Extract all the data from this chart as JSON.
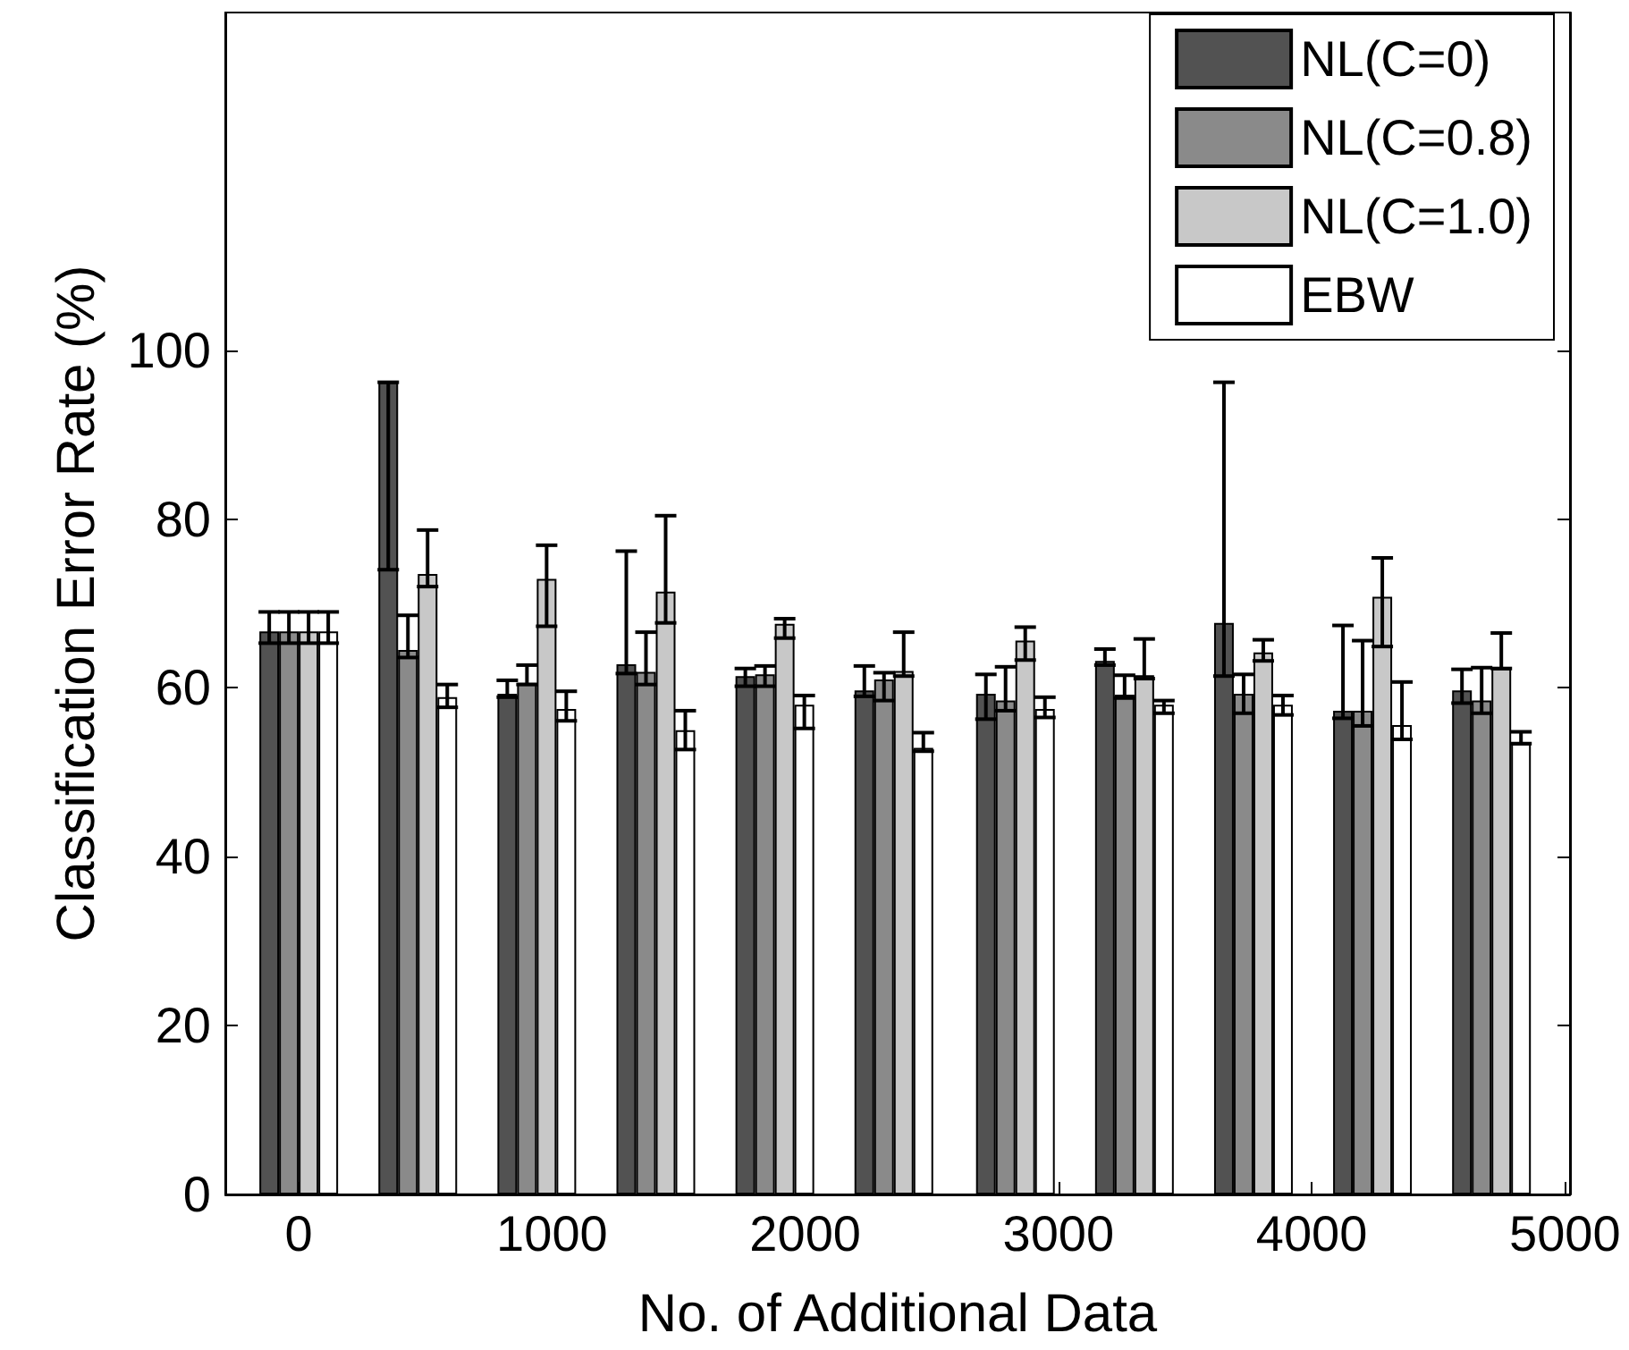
{
  "chart_data": {
    "type": "bar",
    "xlabel": "No. of Additional Data",
    "ylabel": "Classification Error Rate (%)",
    "x": [
      0,
      470,
      940,
      1410,
      1880,
      2350,
      2830,
      3300,
      3770,
      4240,
      4710
    ],
    "series": [
      {
        "name": "NL(C=0)",
        "color": "#525252",
        "values": [
          66.7,
          96.2,
          59.3,
          62.8,
          61.4,
          59.7,
          59.3,
          63.2,
          67.7,
          57.3,
          59.7
        ],
        "errors": [
          [
            65.3,
            69.0
          ],
          [
            74.0,
            96.2
          ],
          [
            58.9,
            60.9
          ],
          [
            61.7,
            76.2
          ],
          [
            60.2,
            62.3
          ],
          [
            59.0,
            62.6
          ],
          [
            56.3,
            61.6
          ],
          [
            62.7,
            64.6
          ],
          [
            61.4,
            96.2
          ],
          [
            56.4,
            67.4
          ],
          [
            58.2,
            62.2
          ]
        ]
      },
      {
        "name": "NL(C=0.8)",
        "color": "#8a8a8a",
        "values": [
          66.7,
          64.5,
          60.6,
          61.9,
          61.6,
          61.0,
          58.5,
          59.2,
          59.3,
          57.3,
          58.5
        ],
        "errors": [
          [
            65.3,
            69.0
          ],
          [
            63.6,
            68.6
          ],
          [
            60.4,
            62.7
          ],
          [
            60.4,
            66.6
          ],
          [
            60.2,
            62.6
          ],
          [
            58.5,
            61.8
          ],
          [
            57.3,
            62.5
          ],
          [
            58.8,
            61.5
          ],
          [
            57.0,
            61.6
          ],
          [
            55.5,
            65.6
          ],
          [
            57.0,
            62.4
          ]
        ]
      },
      {
        "name": "NL(C=1.0)",
        "color": "#c8c8c8",
        "values": [
          66.7,
          73.5,
          72.9,
          71.4,
          67.6,
          62.0,
          65.6,
          61.5,
          64.2,
          70.8,
          62.3
        ],
        "errors": [
          [
            65.3,
            69.0
          ],
          [
            72.0,
            78.7
          ],
          [
            67.3,
            76.9
          ],
          [
            67.7,
            80.4
          ],
          [
            65.9,
            68.2
          ],
          [
            61.4,
            66.6
          ],
          [
            63.3,
            67.2
          ],
          [
            61.1,
            65.8
          ],
          [
            63.2,
            65.7
          ],
          [
            64.9,
            75.4
          ],
          [
            62.3,
            66.5
          ]
        ]
      },
      {
        "name": "EBW",
        "color": "#ffffff",
        "values": [
          66.7,
          58.9,
          57.5,
          55.0,
          58.0,
          52.9,
          57.5,
          58.0,
          58.0,
          55.6,
          53.4
        ],
        "errors": [
          [
            65.3,
            69.0
          ],
          [
            57.7,
            60.4
          ],
          [
            56.1,
            59.6
          ],
          [
            52.7,
            57.3
          ],
          [
            55.2,
            59.1
          ],
          [
            52.5,
            54.7
          ],
          [
            56.5,
            58.9
          ],
          [
            57.0,
            58.5
          ],
          [
            56.8,
            59.1
          ],
          [
            53.9,
            60.7
          ],
          [
            53.4,
            54.8
          ]
        ]
      }
    ],
    "xlim": [
      -290,
      5020
    ],
    "xticks": [
      0,
      1000,
      2000,
      3000,
      4000,
      5000
    ],
    "ylim": [
      0,
      140
    ],
    "yticks": [
      0,
      20,
      40,
      60,
      80,
      100
    ],
    "grid": false,
    "legend": "top right"
  }
}
